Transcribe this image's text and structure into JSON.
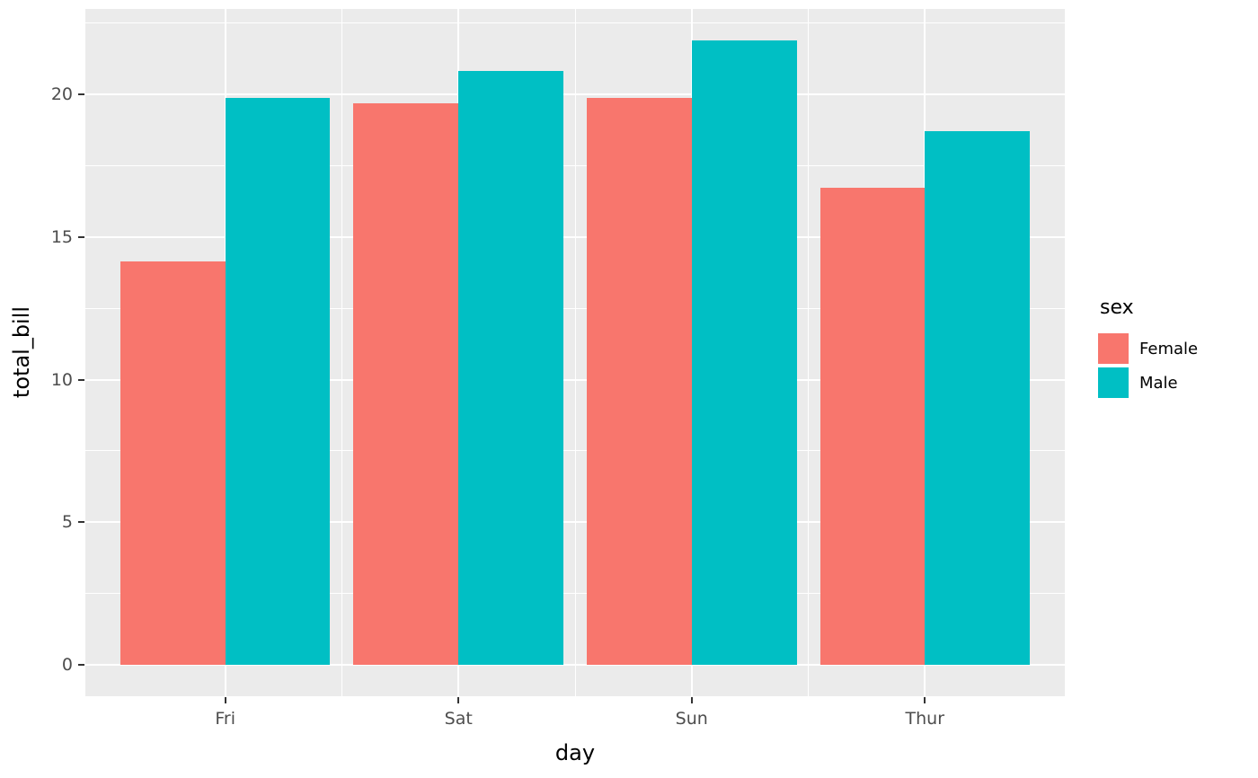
{
  "chart_data": {
    "type": "bar",
    "title": "",
    "xlabel": "day",
    "ylabel": "total_bill",
    "categories": [
      "Fri",
      "Sat",
      "Sun",
      "Thur"
    ],
    "series": [
      {
        "name": "Female",
        "color": "#F8766D",
        "values": [
          14.15,
          19.68,
          19.87,
          16.72
        ]
      },
      {
        "name": "Male",
        "color": "#00BFC4",
        "values": [
          19.86,
          20.8,
          21.89,
          18.71
        ]
      }
    ],
    "y_ticks": [
      0,
      5,
      10,
      15,
      20
    ],
    "y_minor_ticks": [
      2.5,
      7.5,
      12.5,
      17.5,
      22.5
    ],
    "ylim": [
      -1.095,
      22.985
    ],
    "legend": {
      "title": "sex",
      "position": "right"
    },
    "style": {
      "panel_background": "#EBEBEB",
      "grid_color": "#FFFFFF",
      "tick_label_color": "#4D4D4D",
      "axis_title_color": "#000000",
      "bar_dodge_width": 0.9
    }
  }
}
